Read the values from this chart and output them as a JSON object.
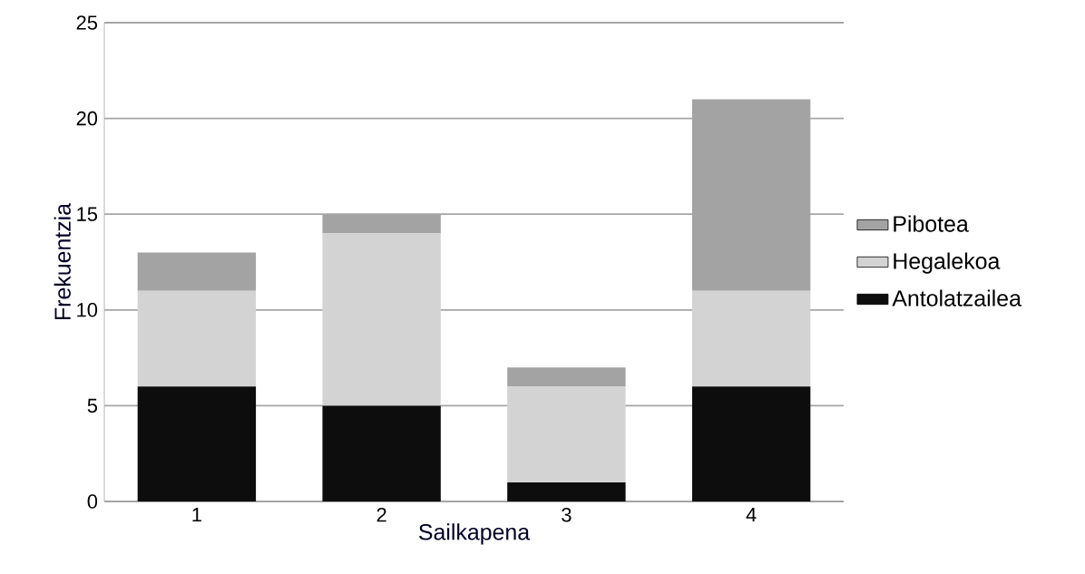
{
  "chart_data": {
    "type": "bar",
    "stacked": true,
    "xlabel": "Sailkapena",
    "ylabel": "Frekuentzia",
    "categories": [
      "1",
      "2",
      "3",
      "4"
    ],
    "series": [
      {
        "name": "Antolatzailea",
        "color": "#0d0d0d",
        "values": [
          6,
          5,
          1,
          6
        ]
      },
      {
        "name": "Hegalekoa",
        "color": "#d3d3d3",
        "values": [
          5,
          9,
          5,
          5
        ]
      },
      {
        "name": "Pibotea",
        "color": "#a3a3a3",
        "values": [
          2,
          1,
          1,
          10
        ]
      }
    ],
    "ylim": [
      0,
      25
    ],
    "yticks": [
      0,
      5,
      10,
      15,
      20,
      25
    ],
    "grid": "y",
    "legend": "right"
  }
}
